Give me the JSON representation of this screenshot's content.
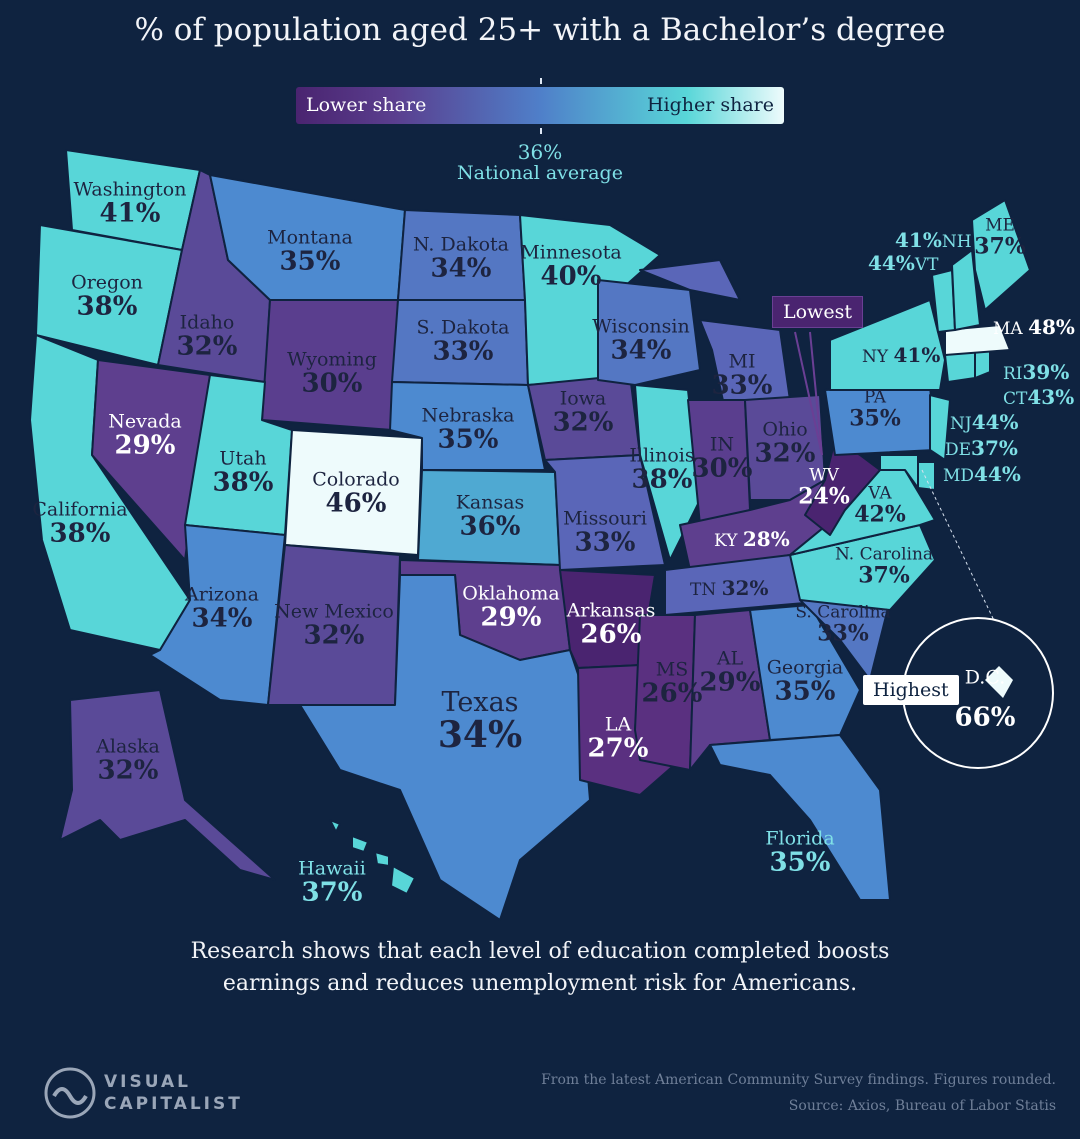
{
  "title": "% of population aged 25+ with a Bachelor’s degree",
  "legend": {
    "low_label": "Lower share",
    "high_label": "Higher share",
    "national_value": "36%",
    "national_label": "National average"
  },
  "colors": {
    "background": "#0f2340",
    "scale_low": "#4a2470",
    "scale_mid": "#4f7fc9",
    "scale_high": "#58d6d8",
    "scale_top": "#eefbfc"
  },
  "states": {
    "WA": {
      "name": "Washington",
      "value": "41%"
    },
    "OR": {
      "name": "Oregon",
      "value": "38%"
    },
    "CA": {
      "name": "California",
      "value": "38%"
    },
    "NV": {
      "name": "Nevada",
      "value": "29%"
    },
    "ID": {
      "name": "Idaho",
      "value": "32%"
    },
    "MT": {
      "name": "Montana",
      "value": "35%"
    },
    "WY": {
      "name": "Wyoming",
      "value": "30%"
    },
    "UT": {
      "name": "Utah",
      "value": "38%"
    },
    "CO": {
      "name": "Colorado",
      "value": "46%"
    },
    "AZ": {
      "name": "Arizona",
      "value": "34%"
    },
    "NM": {
      "name": "New Mexico",
      "value": "32%"
    },
    "ND": {
      "name": "N. Dakota",
      "value": "34%"
    },
    "SD": {
      "name": "S. Dakota",
      "value": "33%"
    },
    "NE": {
      "name": "Nebraska",
      "value": "35%"
    },
    "KS": {
      "name": "Kansas",
      "value": "36%"
    },
    "OK": {
      "name": "Oklahoma",
      "value": "29%"
    },
    "TX": {
      "name": "Texas",
      "value": "34%"
    },
    "MN": {
      "name": "Minnesota",
      "value": "40%"
    },
    "IA": {
      "name": "Iowa",
      "value": "32%"
    },
    "MO": {
      "name": "Missouri",
      "value": "33%"
    },
    "AR": {
      "name": "Arkansas",
      "value": "26%"
    },
    "LA": {
      "name": "LA",
      "value": "27%"
    },
    "WI": {
      "name": "Wisconsin",
      "value": "34%"
    },
    "IL": {
      "name": "Illinois",
      "value": "38%"
    },
    "MI": {
      "name": "MI",
      "value": "33%"
    },
    "IN": {
      "name": "IN",
      "value": "30%"
    },
    "OH": {
      "name": "Ohio",
      "value": "32%"
    },
    "KY": {
      "name": "KY",
      "value": "28%"
    },
    "TN": {
      "name": "TN",
      "value": "32%"
    },
    "MS": {
      "name": "MS",
      "value": "26%"
    },
    "AL": {
      "name": "AL",
      "value": "29%"
    },
    "GA": {
      "name": "Georgia",
      "value": "35%"
    },
    "FL": {
      "name": "Florida",
      "value": "35%"
    },
    "SC": {
      "name": "S. Carolina",
      "value": "33%"
    },
    "NC": {
      "name": "N. Carolina",
      "value": "37%"
    },
    "VA": {
      "name": "VA",
      "value": "42%"
    },
    "WV": {
      "name": "WV",
      "value": "24%"
    },
    "PA": {
      "name": "PA",
      "value": "35%"
    },
    "NY": {
      "name": "NY",
      "value": "41%"
    },
    "NJ": {
      "name": "NJ",
      "value": "44%"
    },
    "DE": {
      "name": "DE",
      "value": "37%"
    },
    "MD": {
      "name": "MD",
      "value": "44%"
    },
    "CT": {
      "name": "CT",
      "value": "43%"
    },
    "RI": {
      "name": "RI",
      "value": "39%"
    },
    "MA": {
      "name": "MA",
      "value": "48%"
    },
    "VT": {
      "name": "VT",
      "value": "44%"
    },
    "NH": {
      "name": "NH",
      "value": "41%"
    },
    "ME": {
      "name": "ME",
      "value": "37%"
    },
    "AK": {
      "name": "Alaska",
      "value": "32%"
    },
    "HI": {
      "name": "Hawaii",
      "value": "37%"
    },
    "DC": {
      "name": "D.C.",
      "value": "66%"
    }
  },
  "callouts": {
    "lowest": "Lowest",
    "highest": "Highest"
  },
  "footer": {
    "line1": "Research shows that each level of education completed boosts",
    "line2": "earnings and reduces unemployment risk for Americans.",
    "note": "From the latest American Community Survey findings. Figures rounded.",
    "source": "Source: Axios, Bureau of Labor Statis"
  },
  "brand": {
    "line1": "VISUAL",
    "line2": "CAPITALIST"
  }
}
